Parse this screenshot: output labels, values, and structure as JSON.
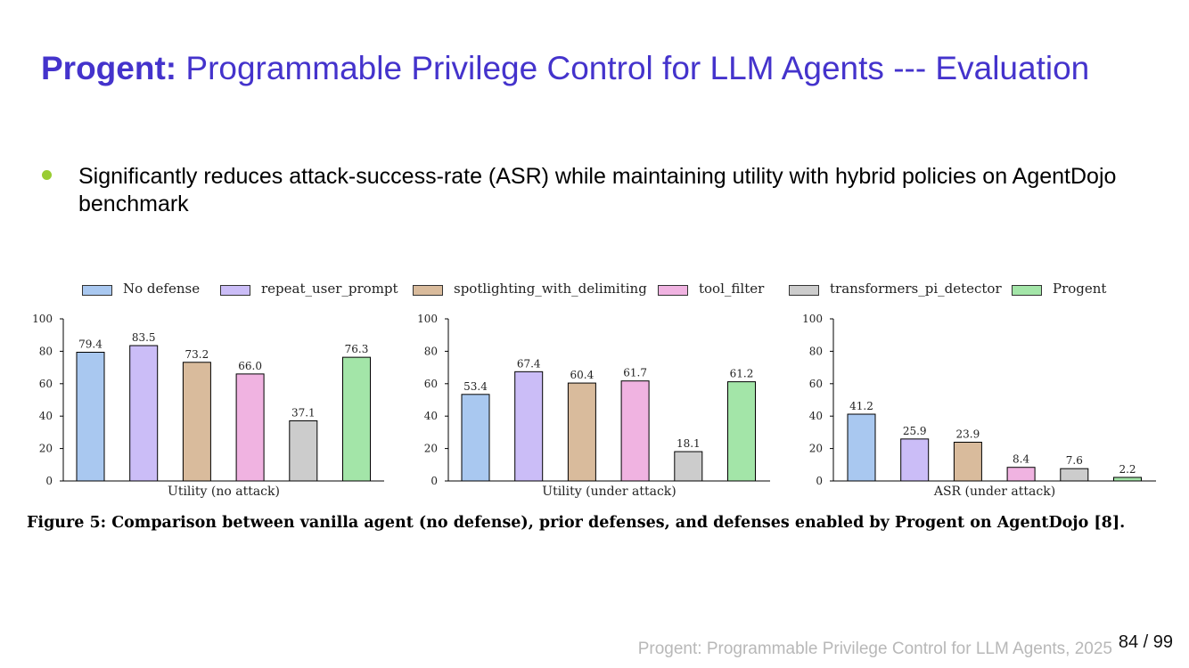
{
  "slide": {
    "title_bold": "Progent:",
    "title_rest": " Programmable Privilege Control for LLM Agents --- Evaluation",
    "bullet": "Significantly reduces attack-success-rate (ASR) while maintaining utility with hybrid policies on AgentDojo benchmark",
    "caption": "Figure 5: Comparison between vanilla agent (no defense), prior defenses, and defenses enabled by Progent on AgentDojo [8].",
    "footer": "Progent: Programmable Privilege Control for LLM Agents, 2025",
    "page_number": "84 / 99",
    "colors": {
      "title": "#4433cc",
      "bullet_dot": "#99cc33"
    }
  },
  "legend": [
    {
      "label": "No defense",
      "color": "#a9c8f0"
    },
    {
      "label": "repeat_user_prompt",
      "color": "#cbbdf7"
    },
    {
      "label": "spotlighting_with_delimiting",
      "color": "#d9bb9c"
    },
    {
      "label": "tool_filter",
      "color": "#f0b3e1"
    },
    {
      "label": "transformers_pi_detector",
      "color": "#cccccc"
    },
    {
      "label": "Progent",
      "color": "#a3e5a8"
    }
  ],
  "chart_data": [
    {
      "type": "bar",
      "xlabel": "Utility (no attack)",
      "ylim": [
        0,
        100
      ],
      "yticks": [
        0,
        20,
        40,
        60,
        80,
        100
      ],
      "categories": [
        "No defense",
        "repeat_user_prompt",
        "spotlighting_with_delimiting",
        "tool_filter",
        "transformers_pi_detector",
        "Progent"
      ],
      "values": [
        79.4,
        83.5,
        73.2,
        66.0,
        37.1,
        76.3
      ],
      "value_labels": [
        "79.4",
        "83.5",
        "73.2",
        "66.0",
        "37.1",
        "76.3"
      ]
    },
    {
      "type": "bar",
      "xlabel": "Utility (under attack)",
      "ylim": [
        0,
        100
      ],
      "yticks": [
        0,
        20,
        40,
        60,
        80,
        100
      ],
      "categories": [
        "No defense",
        "repeat_user_prompt",
        "spotlighting_with_delimiting",
        "tool_filter",
        "transformers_pi_detector",
        "Progent"
      ],
      "values": [
        53.4,
        67.4,
        60.4,
        61.7,
        18.1,
        61.2
      ],
      "value_labels": [
        "53.4",
        "67.4",
        "60.4",
        "61.7",
        "18.1",
        "61.2"
      ]
    },
    {
      "type": "bar",
      "xlabel": "ASR (under attack)",
      "ylim": [
        0,
        100
      ],
      "yticks": [
        0,
        20,
        40,
        60,
        80,
        100
      ],
      "categories": [
        "No defense",
        "repeat_user_prompt",
        "spotlighting_with_delimiting",
        "tool_filter",
        "transformers_pi_detector",
        "Progent"
      ],
      "values": [
        41.2,
        25.9,
        23.9,
        8.4,
        7.6,
        2.2
      ],
      "value_labels": [
        "41.2",
        "25.9",
        "23.9",
        "8.4",
        "7.6",
        "2.2"
      ]
    }
  ]
}
